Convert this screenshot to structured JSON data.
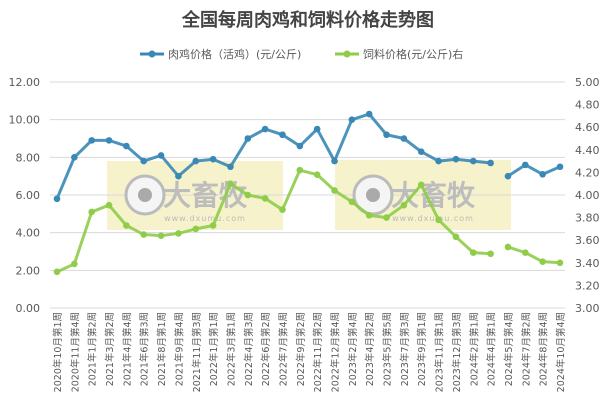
{
  "chart_data": {
    "type": "line",
    "title": "全国每周肉鸡和饲料价格走势图",
    "categories": [
      "2020年10月第1周",
      "2020年11月第4周",
      "2021年1月第2周",
      "2021年3月第2周",
      "2021年4月第4周",
      "2021年6月第3周",
      "2021年8月第1周",
      "2021年9月第4周",
      "2021年11月第3周",
      "2022年1月第1周",
      "2022年3月第1周",
      "2022年4月第3周",
      "2022年6月第2周",
      "2022年7月第4周",
      "2022年9月第2周",
      "2022年11月第2周",
      "2022年12月第4周",
      "2023年2月第4周",
      "2023年4月第2周",
      "2023年5月第5周",
      "2023年7月第3周",
      "2023年9月第1周",
      "2023年11月第1周",
      "2023年12月第3周",
      "2024年2月第1周",
      "2024年4月第1周",
      "2024年5月第4周",
      "2024年7月第2周",
      "2024年8月第4周",
      "2024年10月第4周"
    ],
    "gap_between": [
      "2024年4月第1周",
      "2024年5月第4周"
    ],
    "y_left": {
      "range": [
        0,
        12
      ],
      "ticks": [
        "0.00",
        "2.00",
        "4.00",
        "6.00",
        "8.00",
        "10.00",
        "12.00"
      ]
    },
    "y_right": {
      "range": [
        3,
        5
      ],
      "ticks": [
        "3.00",
        "3.20",
        "3.40",
        "3.60",
        "3.80",
        "4.00",
        "4.20",
        "4.40",
        "4.60",
        "4.80",
        "5.00"
      ]
    },
    "grid": true,
    "legend_position": "top",
    "series": [
      {
        "name": "肉鸡价格（活鸡）(元/公斤)",
        "axis": "left",
        "color": "#3a88b5",
        "values": [
          5.8,
          8.0,
          8.9,
          8.9,
          8.6,
          7.8,
          8.1,
          7.0,
          7.8,
          7.9,
          7.5,
          9.0,
          9.5,
          9.2,
          8.6,
          9.5,
          7.8,
          10.0,
          10.3,
          9.2,
          9.0,
          8.3,
          7.8,
          7.9,
          7.8,
          7.7,
          7.0,
          7.6,
          7.1,
          7.5
        ]
      },
      {
        "name": "饲料价格(元/公斤)右",
        "axis": "right",
        "color": "#8fcc4a",
        "values": [
          3.32,
          3.39,
          3.85,
          3.91,
          3.73,
          3.65,
          3.64,
          3.66,
          3.7,
          3.73,
          4.1,
          4.0,
          3.97,
          3.87,
          4.22,
          4.18,
          4.04,
          3.94,
          3.82,
          3.8,
          3.91,
          4.09,
          3.78,
          3.63,
          3.49,
          3.48,
          3.54,
          3.49,
          3.41,
          3.4
        ]
      }
    ]
  },
  "watermark": {
    "brand": "大畜牧",
    "url": "www.dxumu.com"
  }
}
